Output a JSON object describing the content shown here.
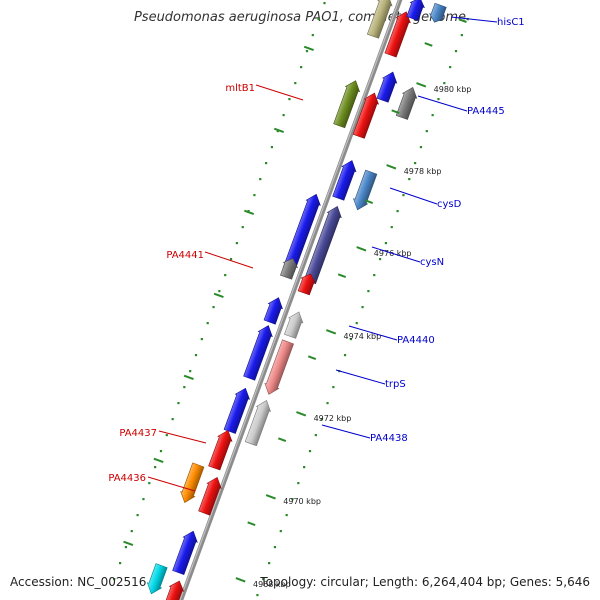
{
  "title": "Pseudomonas aeruginosa PAO1, complete genome",
  "footer": {
    "accession": "Accession: NC_002516",
    "summary": "Topology: circular; Length: 6,264,404 bp; Genes: 5,646"
  },
  "ticks": [
    {
      "label": "4980 kbp"
    },
    {
      "label": "4978 kbp"
    },
    {
      "label": "4976 kbp"
    },
    {
      "label": "4974 kbp"
    },
    {
      "label": "4972 kbp"
    },
    {
      "label": "4970 kbp"
    },
    {
      "label": "4968 kbp"
    }
  ],
  "labels": [
    {
      "text": "hisC1",
      "color": "#0000cc"
    },
    {
      "text": "PA4445",
      "color": "#0000cc"
    },
    {
      "text": "cysD",
      "color": "#0000cc"
    },
    {
      "text": "cysN",
      "color": "#0000cc"
    },
    {
      "text": "PA4440",
      "color": "#0000cc"
    },
    {
      "text": "trpS",
      "color": "#0000cc"
    },
    {
      "text": "PA4438",
      "color": "#0000cc"
    },
    {
      "text": "mltB1",
      "color": "#cc0000"
    },
    {
      "text": "PA4441",
      "color": "#cc0000"
    },
    {
      "text": "PA4437",
      "color": "#cc0000"
    },
    {
      "text": "PA4436",
      "color": "#cc0000"
    }
  ],
  "colors": {
    "backbone": "#8c8c8c",
    "tick": "#2a8a2a",
    "blue": "#1a1aee",
    "red": "#ee1111",
    "olive": "#6b8c1e",
    "tan": "#b8b27a",
    "gray": "#7a7a7a",
    "lightgray": "#cccccc",
    "steelblue": "#4a86c8",
    "slate": "#4a4a99",
    "pink": "#ee8888",
    "orange": "#ff8c00",
    "cyan": "#00d8e8"
  }
}
